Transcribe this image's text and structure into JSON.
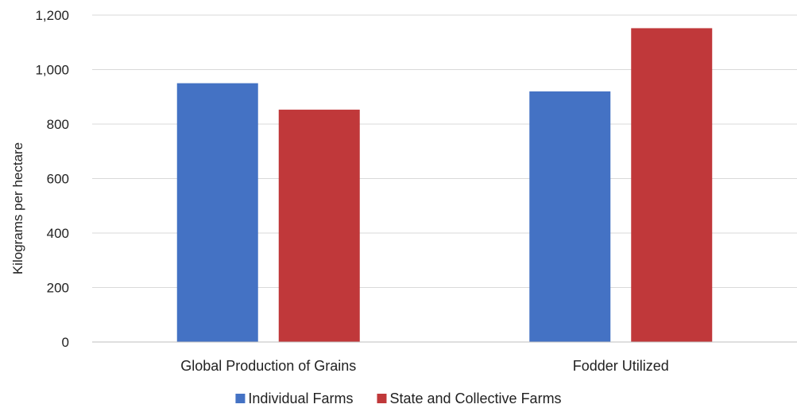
{
  "chart_data": {
    "type": "bar",
    "categories": [
      "Global Production of Grains",
      "Fodder Utilized"
    ],
    "series": [
      {
        "name": "Individual Farms",
        "values": [
          950,
          920
        ],
        "color": "#4472c4"
      },
      {
        "name": "State and Collective Farms",
        "values": [
          853,
          1152
        ],
        "color": "#c0383a"
      }
    ],
    "ylabel": "Kilograms per hectare",
    "ylim": [
      0,
      1200
    ],
    "yticks": [
      0,
      200,
      400,
      600,
      800,
      1000,
      1200
    ],
    "ytick_labels": [
      "0",
      "200",
      "400",
      "600",
      "800",
      "1,000",
      "1,200"
    ],
    "grid": true,
    "legend": "bottom"
  }
}
